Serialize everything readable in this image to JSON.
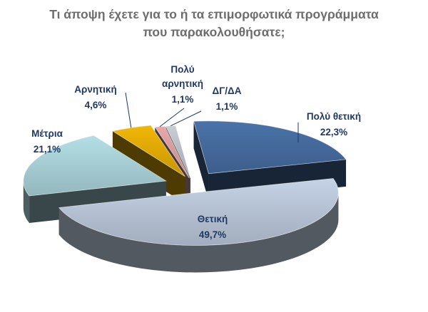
{
  "title_lines": [
    "Τι άποψη έχετε για το ή τα επιμορφωτικά προγράμματα",
    "που παρακολουθήσατε;"
  ],
  "chart_data": {
    "type": "pie",
    "title": "Τι άποψη έχετε για το ή τα επιμορφωτικά προγράμματα που παρακολουθήσατε;",
    "exploded": true,
    "three_d": true,
    "slices": [
      {
        "label": "Πολύ θετική",
        "value": 22.3,
        "value_label": "22,3%",
        "color": "#4a73a9"
      },
      {
        "label": "Θετική",
        "value": 49.7,
        "value_label": "49,7%",
        "color": "#c5d3e6"
      },
      {
        "label": "Μέτρια",
        "value": 21.1,
        "value_label": "21,1%",
        "color": "#b4dfe6"
      },
      {
        "label": "Αρνητική",
        "value": 4.6,
        "value_label": "4,6%",
        "color": "#f2b705"
      },
      {
        "label": "Πολύ αρνητική",
        "value": 1.1,
        "value_label": "1,1%",
        "color": "#e8a8a8"
      },
      {
        "label": "ΔΓ/ΔΑ",
        "value": 1.1,
        "value_label": "1,1%",
        "color": "#c8cdd6"
      }
    ]
  }
}
